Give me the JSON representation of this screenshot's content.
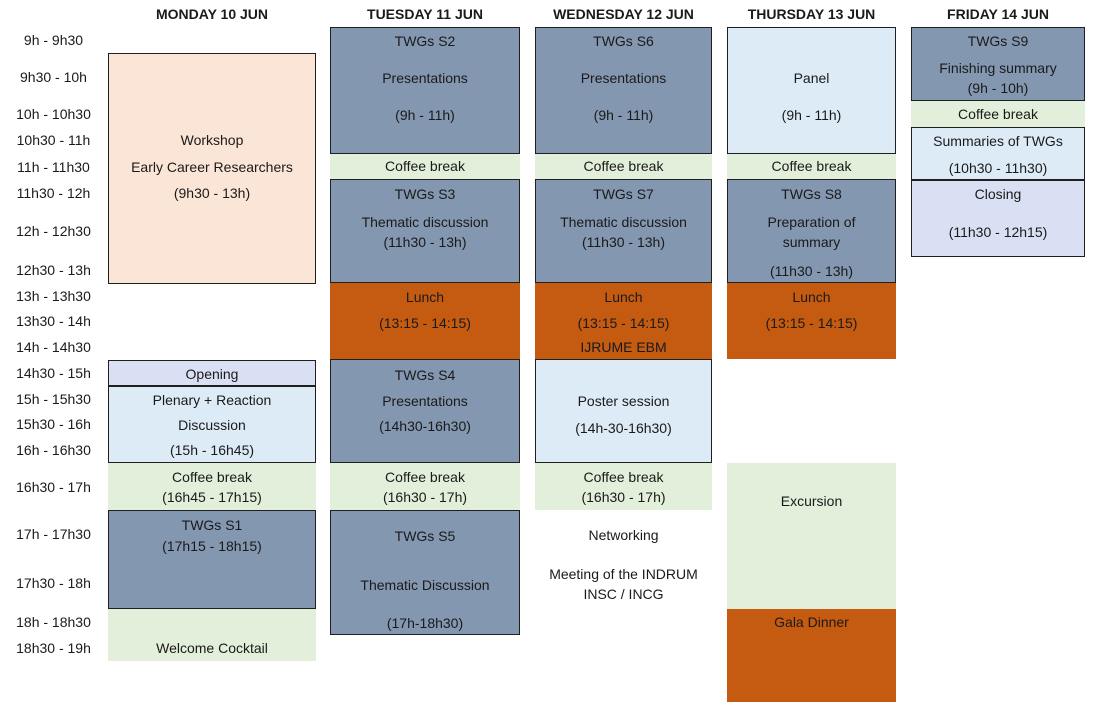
{
  "days": [
    "MONDAY 10 JUN",
    "TUESDAY 11 JUN",
    "WEDNESDAY 12 JUN",
    "THURSDAY 13 JUN",
    "FRIDAY 14 JUN"
  ],
  "times": [
    "9h - 9h30",
    "9h30 - 10h",
    "10h - 10h30",
    "10h30 - 11h",
    "11h - 11h30",
    "11h30 - 12h",
    "12h - 12h30",
    "12h30 - 13h",
    "13h - 13h30",
    "13h30 - 14h",
    "14h - 14h30",
    "14h30 - 15h",
    "15h - 15h30",
    "15h30 - 16h",
    "16h - 16h30",
    "16h30 - 17h",
    "17h - 17h30",
    "17h30 - 18h",
    "18h - 18h30",
    "18h30 - 19h"
  ],
  "monday": {
    "workshop": [
      "Workshop",
      "Early Career Researchers",
      "(9h30 - 13h)"
    ],
    "opening": "Opening",
    "plenary": [
      "Plenary + Reaction",
      "Discussion",
      "(15h - 16h45)"
    ],
    "coffee": [
      "Coffee break",
      "(16h45 - 17h15)"
    ],
    "twg_s1": [
      "TWGs S1",
      "(17h15 - 18h15)"
    ],
    "welcome": "Welcome Cocktail"
  },
  "tuesday": {
    "twg_s2": [
      "TWGs S2",
      "Presentations",
      "(9h - 11h)"
    ],
    "coffee1": "Coffee break",
    "twg_s3": [
      "TWGs S3",
      "Thematic discussion",
      "(11h30 - 13h)"
    ],
    "lunch": [
      "Lunch",
      "(13:15 - 14:15)"
    ],
    "twg_s4": [
      "TWGs S4",
      "Presentations",
      "(14h30-16h30)"
    ],
    "coffee2": [
      "Coffee break",
      "(16h30 - 17h)"
    ],
    "twg_s5": [
      "TWGs S5",
      "Thematic Discussion",
      "(17h-18h30)"
    ]
  },
  "wednesday": {
    "twg_s6": [
      "TWGs S6",
      "Presentations",
      "(9h - 11h)"
    ],
    "coffee1": "Coffee break",
    "twg_s7": [
      "TWGs S7",
      "Thematic discussion",
      "(11h30 - 13h)"
    ],
    "lunch": [
      "Lunch",
      "(13:15 - 14:15)",
      "IJRUME EBM"
    ],
    "poster": [
      "Poster session",
      "(14h-30-16h30)"
    ],
    "coffee2": [
      "Coffee break",
      "(16h30 - 17h)"
    ],
    "networking": "Networking",
    "meeting": [
      "Meeting of the INDRUM",
      "INSC / INCG"
    ]
  },
  "thursday": {
    "panel": [
      "Panel",
      "(9h - 11h)"
    ],
    "coffee": "Coffee break",
    "twg_s8": [
      "TWGs S8",
      "Preparation of",
      "summary",
      "(11h30 - 13h)"
    ],
    "lunch": [
      "Lunch",
      "(13:15 - 14:15)"
    ],
    "excursion": "Excursion",
    "gala": "Gala Dinner"
  },
  "friday": {
    "twg_s9": [
      "TWGs S9",
      "Finishing summary",
      "(9h - 10h)"
    ],
    "coffee": "Coffee break",
    "summaries": [
      "Summaries of TWGs",
      "(10h30 - 11h30)"
    ],
    "closing": [
      "Closing",
      "(11h30 - 12h15)"
    ]
  },
  "colors": {
    "slate": "#8497b0",
    "light_blue": "#ddebf7",
    "lavender": "#dae0f3",
    "peach": "#fbe5d6",
    "green": "#e2efda",
    "orange": "#c55a11"
  }
}
